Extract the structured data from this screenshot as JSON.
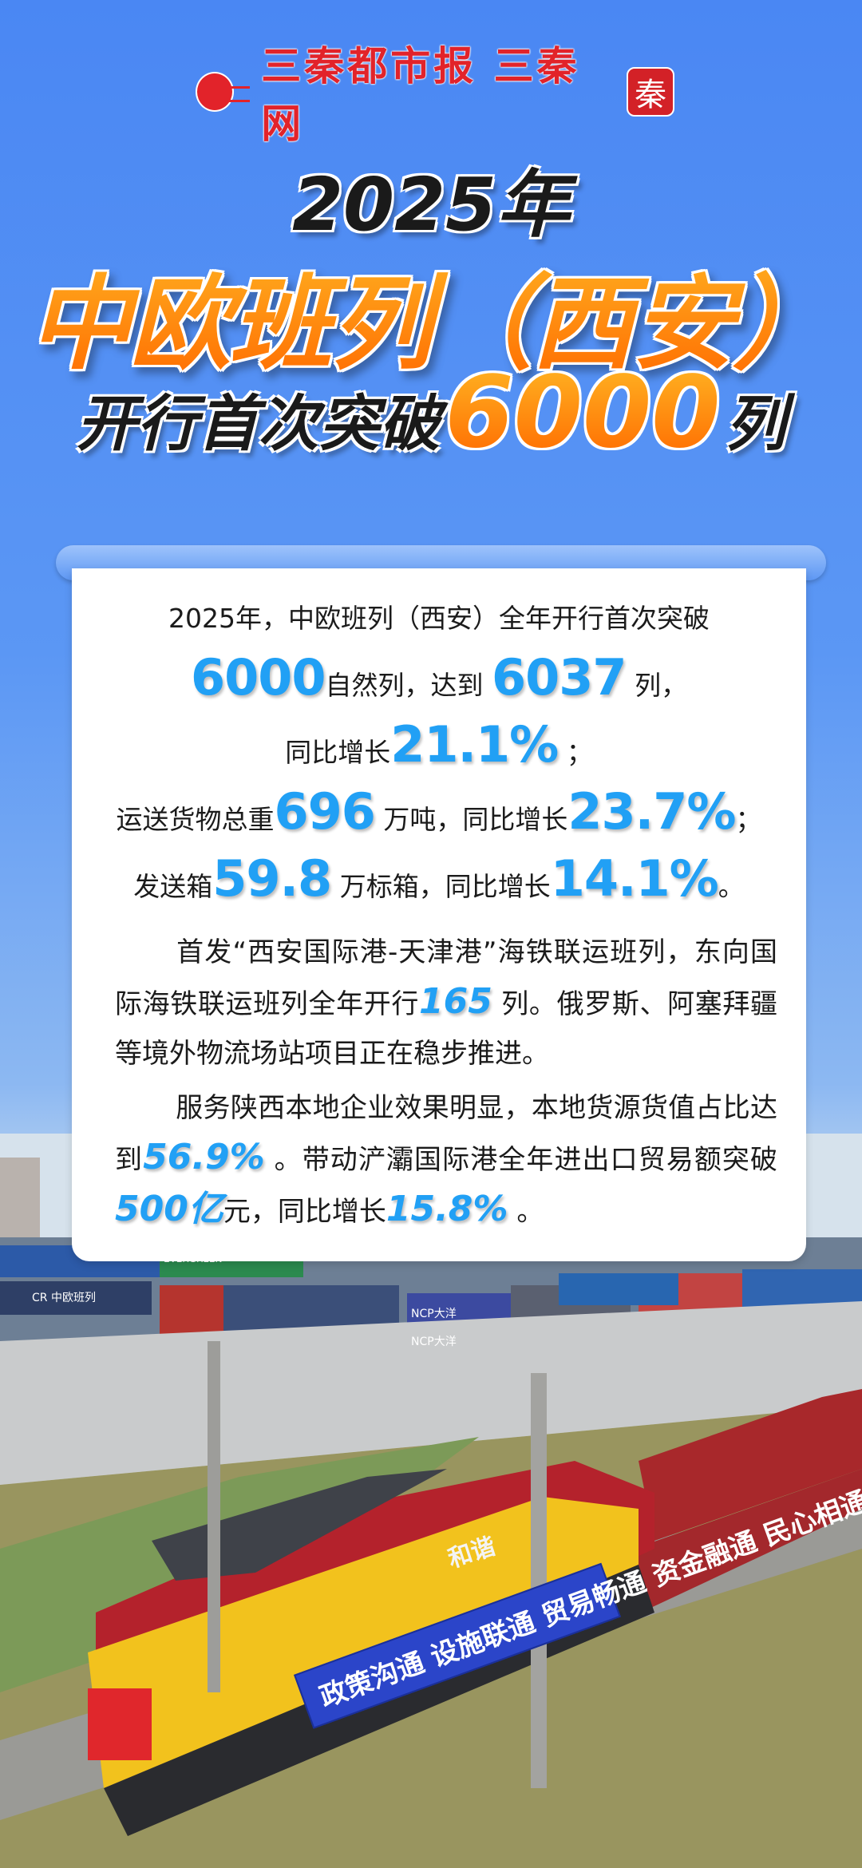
{
  "header": {
    "logo_text": "三秦都市报 三秦网",
    "logo_badge": "秦",
    "title_year": "2025年",
    "title_main": "中欧班列（西安）",
    "title_sub_prefix": "开行首次突破",
    "title_sub_number": "6000",
    "title_sub_suffix": "列"
  },
  "card": {
    "line1": "2025年，中欧班列（西安）全年开行首次突破",
    "line2": {
      "n1": "6000",
      "t1": "自然列，达到",
      "n2": "6037",
      "t2": "列，"
    },
    "line3": {
      "t1": "同比增长",
      "n1": "21.1%",
      "t2": "；"
    },
    "line4": {
      "t1": "运送货物总重",
      "n1": "696",
      "t2": "万吨，同比增长",
      "n2": "23.7%",
      "t3": "；"
    },
    "line5": {
      "t1": "发送箱",
      "n1": "59.8",
      "t2": "万标箱，同比增长",
      "n2": "14.1%",
      "t3": "。"
    },
    "para1": {
      "t1": "首发“西安国际港-天津港”海铁联运班列，东向国际海铁联运班列全年开行",
      "n1": "165",
      "t2": "列。俄罗斯、阿塞拜疆等境外物流场站项目正在稳步推进。"
    },
    "para2": {
      "t1": "服务陕西本地企业效果明显，本地货源货值占比达到",
      "n1": "56.9%",
      "t2": "。带动浐灞国际港全年进出口贸易额突破",
      "n2": "500亿",
      "t3": "元，同比增长",
      "n3": "15.8%",
      "t4": "。"
    }
  },
  "photo": {
    "banner_text": "政策沟通 设施联通 贸易畅通 资金融通 民心相通",
    "loco_text": "和谐",
    "container_labels": [
      "CR 中欧班列",
      "NCP大洋",
      "NCP大洋",
      "EVERGREEN"
    ]
  },
  "colors": {
    "accent_blue": "#21a0f5",
    "title_orange": "#ff8a0c",
    "brand_red": "#e2232a",
    "background_blue": "#4a87f3"
  }
}
